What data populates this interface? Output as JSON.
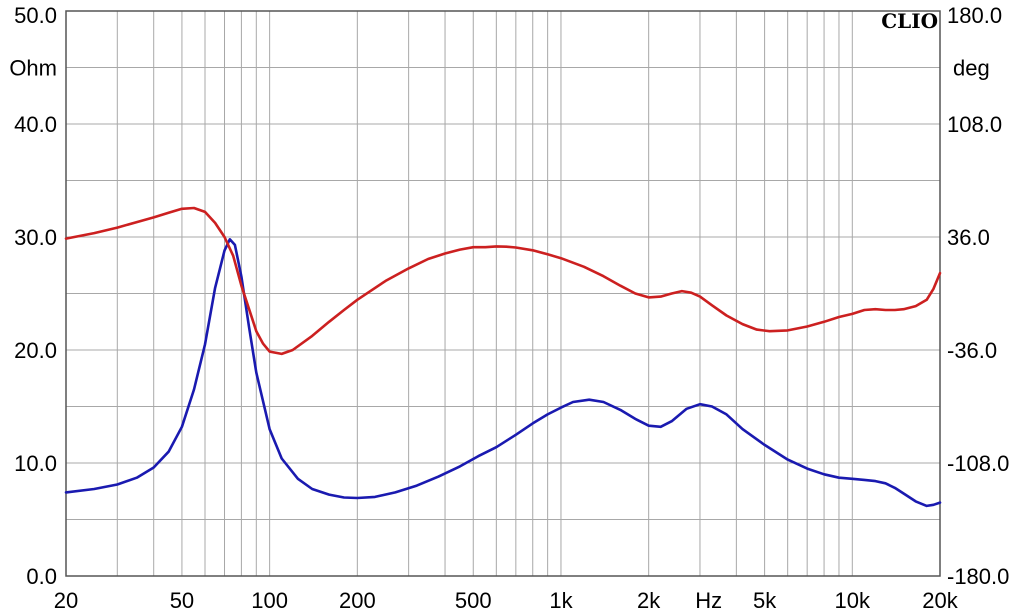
{
  "chart_data": {
    "type": "line",
    "brand": "CLIO",
    "x_scale": "log",
    "xlim": [
      20,
      20000
    ],
    "x_tick_labels": [
      {
        "v": 20,
        "t": "20"
      },
      {
        "v": 50,
        "t": "50"
      },
      {
        "v": 100,
        "t": "100"
      },
      {
        "v": 200,
        "t": "200"
      },
      {
        "v": 500,
        "t": "500"
      },
      {
        "v": 1000,
        "t": "1k"
      },
      {
        "v": 2000,
        "t": "2k"
      },
      {
        "v": 5000,
        "t": "5k"
      },
      {
        "v": 10000,
        "t": "10k"
      },
      {
        "v": 20000,
        "t": "20k"
      }
    ],
    "x_unit": "Hz",
    "grid": true,
    "y_left": {
      "unit": "Ohm",
      "ylim": [
        0,
        50
      ],
      "ticks": [
        {
          "v": 50,
          "t": "50.0"
        },
        {
          "v": 40,
          "t": "40.0"
        },
        {
          "v": 30,
          "t": "30.0"
        },
        {
          "v": 20,
          "t": "20.0"
        },
        {
          "v": 10,
          "t": "10.0"
        },
        {
          "v": 0,
          "t": "0.0"
        }
      ]
    },
    "y_right": {
      "unit": "deg",
      "ylim": [
        -180,
        180
      ],
      "ticks": [
        {
          "v": 180,
          "t": "180.0"
        },
        {
          "v": 108,
          "t": "108.0"
        },
        {
          "v": 36,
          "t": "36.0"
        },
        {
          "v": -36,
          "t": "-36.0"
        },
        {
          "v": -108,
          "t": "-108.0"
        },
        {
          "v": -180,
          "t": "-180.0"
        }
      ]
    },
    "series": [
      {
        "color": "#1a1ab0",
        "axis": "left",
        "points": [
          [
            20,
            7.4
          ],
          [
            25,
            7.7
          ],
          [
            30,
            8.1
          ],
          [
            35,
            8.7
          ],
          [
            40,
            9.6
          ],
          [
            45,
            11.0
          ],
          [
            50,
            13.2
          ],
          [
            55,
            16.5
          ],
          [
            60,
            20.5
          ],
          [
            65,
            25.5
          ],
          [
            70,
            28.8
          ],
          [
            73,
            29.8
          ],
          [
            76,
            29.3
          ],
          [
            80,
            26.5
          ],
          [
            85,
            22.0
          ],
          [
            90,
            18.0
          ],
          [
            100,
            13.0
          ],
          [
            110,
            10.4
          ],
          [
            125,
            8.6
          ],
          [
            140,
            7.7
          ],
          [
            160,
            7.2
          ],
          [
            180,
            6.95
          ],
          [
            200,
            6.9
          ],
          [
            230,
            7.0
          ],
          [
            270,
            7.4
          ],
          [
            320,
            8.0
          ],
          [
            380,
            8.8
          ],
          [
            450,
            9.7
          ],
          [
            520,
            10.6
          ],
          [
            600,
            11.4
          ],
          [
            700,
            12.5
          ],
          [
            800,
            13.5
          ],
          [
            900,
            14.3
          ],
          [
            1000,
            14.9
          ],
          [
            1100,
            15.4
          ],
          [
            1250,
            15.6
          ],
          [
            1400,
            15.4
          ],
          [
            1600,
            14.7
          ],
          [
            1800,
            13.9
          ],
          [
            2000,
            13.3
          ],
          [
            2200,
            13.2
          ],
          [
            2400,
            13.7
          ],
          [
            2700,
            14.8
          ],
          [
            3000,
            15.2
          ],
          [
            3300,
            15.0
          ],
          [
            3700,
            14.3
          ],
          [
            4200,
            13.0
          ],
          [
            5000,
            11.6
          ],
          [
            6000,
            10.3
          ],
          [
            7000,
            9.5
          ],
          [
            8000,
            9.0
          ],
          [
            9000,
            8.7
          ],
          [
            10000,
            8.6
          ],
          [
            11000,
            8.5
          ],
          [
            12000,
            8.4
          ],
          [
            13000,
            8.2
          ],
          [
            14000,
            7.8
          ],
          [
            15000,
            7.3
          ],
          [
            16500,
            6.6
          ],
          [
            18000,
            6.2
          ],
          [
            19000,
            6.3
          ],
          [
            20000,
            6.5
          ]
        ]
      },
      {
        "color": "#cc2020",
        "axis": "right",
        "points": [
          [
            20,
            35
          ],
          [
            25,
            38.5
          ],
          [
            30,
            42
          ],
          [
            35,
            45.5
          ],
          [
            40,
            48.5
          ],
          [
            45,
            51.5
          ],
          [
            50,
            54
          ],
          [
            55,
            54.5
          ],
          [
            60,
            52
          ],
          [
            65,
            45
          ],
          [
            70,
            36
          ],
          [
            75,
            24
          ],
          [
            80,
            5
          ],
          [
            85,
            -10
          ],
          [
            90,
            -24
          ],
          [
            95,
            -32
          ],
          [
            100,
            -37
          ],
          [
            110,
            -38.5
          ],
          [
            120,
            -36
          ],
          [
            140,
            -27
          ],
          [
            160,
            -18
          ],
          [
            180,
            -10.5
          ],
          [
            200,
            -4
          ],
          [
            250,
            8
          ],
          [
            300,
            16
          ],
          [
            350,
            22
          ],
          [
            400,
            25.5
          ],
          [
            450,
            28
          ],
          [
            500,
            29.5
          ],
          [
            550,
            29.5
          ],
          [
            600,
            30
          ],
          [
            650,
            29.8
          ],
          [
            700,
            29.3
          ],
          [
            800,
            27.5
          ],
          [
            900,
            25
          ],
          [
            1000,
            22.5
          ],
          [
            1200,
            17
          ],
          [
            1400,
            11
          ],
          [
            1600,
            5
          ],
          [
            1800,
            0
          ],
          [
            2000,
            -2.5
          ],
          [
            2200,
            -2
          ],
          [
            2400,
            0
          ],
          [
            2600,
            1.5
          ],
          [
            2800,
            0.5
          ],
          [
            3000,
            -2
          ],
          [
            3300,
            -7.5
          ],
          [
            3700,
            -14
          ],
          [
            4200,
            -19.5
          ],
          [
            4700,
            -23
          ],
          [
            5200,
            -24
          ],
          [
            6000,
            -23.5
          ],
          [
            7000,
            -21
          ],
          [
            8000,
            -18
          ],
          [
            9000,
            -15
          ],
          [
            10000,
            -13
          ],
          [
            11000,
            -10.5
          ],
          [
            12000,
            -10
          ],
          [
            13000,
            -10.5
          ],
          [
            14000,
            -10.5
          ],
          [
            15000,
            -10
          ],
          [
            16500,
            -8
          ],
          [
            18000,
            -4
          ],
          [
            19000,
            3
          ],
          [
            19600,
            9
          ],
          [
            20000,
            13
          ]
        ]
      }
    ]
  }
}
